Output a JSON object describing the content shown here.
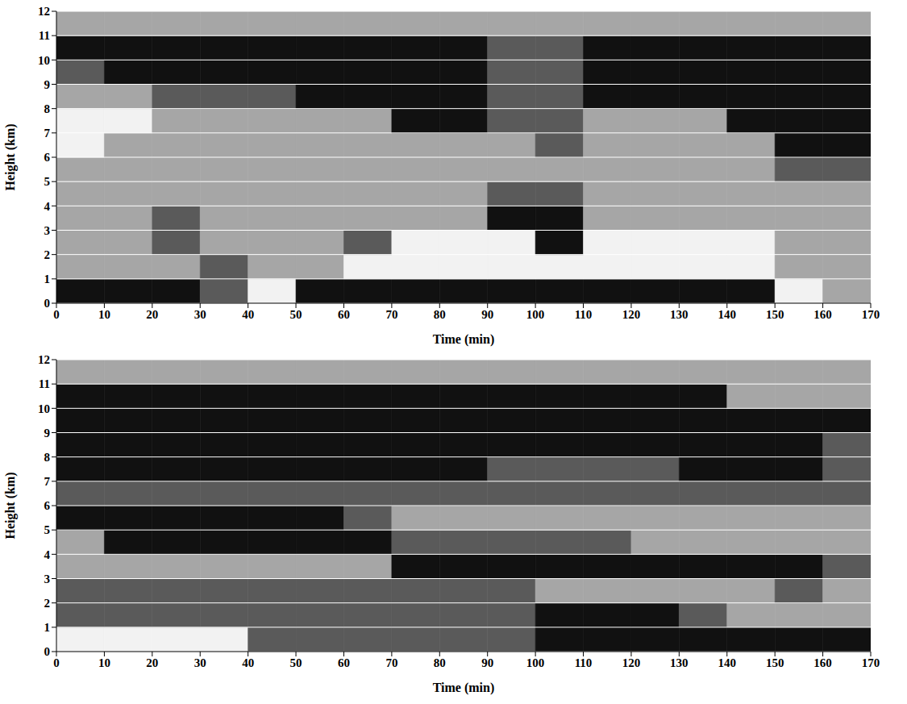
{
  "chart_data": [
    {
      "type": "heatmap",
      "x_label": "Time (min)",
      "y_label": "Height (km)",
      "xlim": [
        0,
        170
      ],
      "xticks": [
        0,
        10,
        20,
        30,
        40,
        50,
        60,
        70,
        80,
        90,
        100,
        110,
        120,
        130,
        140,
        150,
        160,
        170
      ],
      "ylim": [
        0,
        12
      ],
      "yticks": [
        0,
        1,
        2,
        3,
        4,
        5,
        6,
        7,
        8,
        9,
        10,
        11,
        12
      ],
      "grid": true,
      "colors": [
        "#111111",
        "#5a5a5a",
        "#a6a6a6",
        "#f2f2f2"
      ],
      "x_edges": [
        0,
        10,
        20,
        30,
        40,
        50,
        60,
        70,
        80,
        90,
        100,
        110,
        120,
        130,
        140,
        150,
        160,
        170
      ],
      "y_edges": [
        0,
        1,
        2,
        3,
        4,
        5,
        6,
        7,
        8,
        9,
        10,
        11,
        12
      ],
      "cells": [
        [
          0,
          0,
          0,
          1,
          3,
          0,
          0,
          0,
          0,
          0,
          0,
          0,
          0,
          0,
          0,
          3,
          2
        ],
        [
          2,
          2,
          2,
          1,
          2,
          2,
          3,
          3,
          3,
          3,
          3,
          3,
          3,
          3,
          3,
          2,
          2
        ],
        [
          2,
          2,
          1,
          2,
          2,
          2,
          1,
          3,
          3,
          3,
          0,
          3,
          3,
          3,
          3,
          2,
          2
        ],
        [
          2,
          2,
          1,
          2,
          2,
          2,
          2,
          2,
          2,
          0,
          0,
          2,
          2,
          2,
          2,
          2,
          2
        ],
        [
          2,
          2,
          2,
          2,
          2,
          2,
          2,
          2,
          2,
          1,
          1,
          2,
          2,
          2,
          2,
          2,
          2
        ],
        [
          2,
          2,
          2,
          2,
          2,
          2,
          2,
          2,
          2,
          2,
          2,
          2,
          2,
          2,
          2,
          1,
          1
        ],
        [
          3,
          2,
          2,
          2,
          2,
          2,
          2,
          2,
          2,
          2,
          1,
          2,
          2,
          2,
          2,
          0,
          0
        ],
        [
          3,
          3,
          2,
          2,
          2,
          2,
          2,
          0,
          0,
          1,
          1,
          2,
          2,
          2,
          0,
          0,
          0
        ],
        [
          2,
          2,
          1,
          1,
          1,
          0,
          0,
          0,
          0,
          1,
          1,
          0,
          0,
          0,
          0,
          0,
          0
        ],
        [
          1,
          0,
          0,
          0,
          0,
          0,
          0,
          0,
          0,
          1,
          1,
          0,
          0,
          0,
          0,
          0,
          0
        ],
        [
          0,
          0,
          0,
          0,
          0,
          0,
          0,
          0,
          0,
          1,
          1,
          0,
          0,
          0,
          0,
          0,
          0
        ],
        [
          2,
          2,
          2,
          2,
          2,
          2,
          2,
          2,
          2,
          2,
          2,
          2,
          2,
          2,
          2,
          2,
          2
        ]
      ]
    },
    {
      "type": "heatmap",
      "x_label": "Time (min)",
      "y_label": "Height (km)",
      "xlim": [
        0,
        170
      ],
      "xticks": [
        0,
        10,
        20,
        30,
        40,
        50,
        60,
        70,
        80,
        90,
        100,
        110,
        120,
        130,
        140,
        150,
        160,
        170
      ],
      "ylim": [
        0,
        12
      ],
      "yticks": [
        0,
        1,
        2,
        3,
        4,
        5,
        6,
        7,
        8,
        9,
        10,
        11,
        12
      ],
      "grid": true,
      "colors": [
        "#111111",
        "#5a5a5a",
        "#a6a6a6",
        "#f2f2f2"
      ],
      "x_edges": [
        0,
        10,
        20,
        30,
        40,
        50,
        60,
        70,
        80,
        90,
        100,
        110,
        120,
        130,
        140,
        150,
        160,
        170
      ],
      "y_edges": [
        0,
        1,
        2,
        3,
        4,
        5,
        6,
        7,
        8,
        9,
        10,
        11,
        12
      ],
      "cells": [
        [
          3,
          3,
          3,
          3,
          1,
          1,
          1,
          1,
          1,
          1,
          0,
          0,
          0,
          0,
          0,
          0,
          0
        ],
        [
          1,
          1,
          1,
          1,
          1,
          1,
          1,
          1,
          1,
          1,
          0,
          0,
          0,
          1,
          2,
          2,
          2
        ],
        [
          1,
          1,
          1,
          1,
          1,
          1,
          1,
          1,
          1,
          1,
          2,
          2,
          2,
          2,
          2,
          1,
          2
        ],
        [
          2,
          2,
          2,
          2,
          2,
          2,
          2,
          0,
          0,
          0,
          0,
          0,
          0,
          0,
          0,
          0,
          1
        ],
        [
          2,
          0,
          0,
          0,
          0,
          0,
          0,
          1,
          1,
          1,
          1,
          1,
          2,
          2,
          2,
          2,
          2
        ],
        [
          0,
          0,
          0,
          0,
          0,
          0,
          1,
          2,
          2,
          2,
          2,
          2,
          2,
          2,
          2,
          2,
          2
        ],
        [
          1,
          1,
          1,
          1,
          1,
          1,
          1,
          1,
          1,
          1,
          1,
          1,
          1,
          1,
          1,
          1,
          1
        ],
        [
          0,
          0,
          0,
          0,
          0,
          0,
          0,
          0,
          0,
          1,
          1,
          1,
          1,
          0,
          0,
          0,
          1
        ],
        [
          0,
          0,
          0,
          0,
          0,
          0,
          0,
          0,
          0,
          0,
          0,
          0,
          0,
          0,
          0,
          0,
          1
        ],
        [
          0,
          0,
          0,
          0,
          0,
          0,
          0,
          0,
          0,
          0,
          0,
          0,
          0,
          0,
          0,
          0,
          0
        ],
        [
          0,
          0,
          0,
          0,
          0,
          0,
          0,
          0,
          0,
          0,
          0,
          0,
          0,
          0,
          2,
          2,
          2
        ],
        [
          2,
          2,
          2,
          2,
          2,
          2,
          2,
          2,
          2,
          2,
          2,
          2,
          2,
          2,
          2,
          2,
          2
        ]
      ]
    }
  ]
}
